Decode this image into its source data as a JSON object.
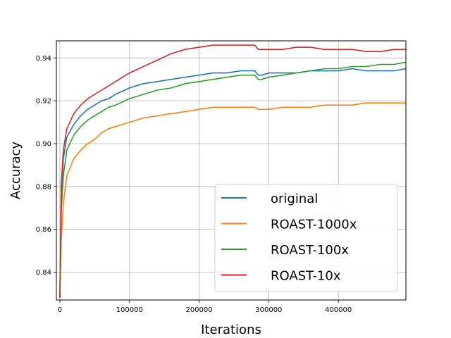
{
  "chart_data": {
    "type": "line",
    "title": "",
    "xlabel": "Iterations",
    "ylabel": "Accuracy",
    "xlim": [
      -5000,
      497000
    ],
    "ylim": [
      0.827,
      0.948
    ],
    "xticks": [
      0,
      100000,
      200000,
      300000,
      400000
    ],
    "xtick_labels": [
      "0",
      "100000",
      "200000",
      "300000",
      "400000"
    ],
    "yticks": [
      0.84,
      0.86,
      0.88,
      0.9,
      0.92,
      0.94
    ],
    "ytick_labels": [
      "0.84",
      "0.86",
      "0.88",
      "0.90",
      "0.92",
      "0.94"
    ],
    "grid": true,
    "legend_position": "lower-right",
    "series": [
      {
        "name": "original",
        "color": "#1f77b4",
        "x": [
          0,
          2000,
          5000,
          10000,
          20000,
          30000,
          40000,
          50000,
          60000,
          70000,
          80000,
          100000,
          120000,
          140000,
          160000,
          180000,
          200000,
          220000,
          240000,
          260000,
          280000,
          285000,
          290000,
          300000,
          320000,
          340000,
          360000,
          380000,
          400000,
          420000,
          440000,
          460000,
          480000,
          497000
        ],
        "y": [
          0.828,
          0.875,
          0.893,
          0.903,
          0.909,
          0.913,
          0.916,
          0.918,
          0.92,
          0.921,
          0.923,
          0.926,
          0.928,
          0.929,
          0.93,
          0.931,
          0.932,
          0.933,
          0.933,
          0.934,
          0.934,
          0.932,
          0.932,
          0.933,
          0.933,
          0.933,
          0.934,
          0.934,
          0.934,
          0.935,
          0.934,
          0.934,
          0.934,
          0.935
        ]
      },
      {
        "name": "ROAST-1000x",
        "color": "#ff7f0e",
        "x": [
          0,
          2000,
          5000,
          10000,
          20000,
          30000,
          40000,
          50000,
          60000,
          70000,
          80000,
          100000,
          120000,
          140000,
          160000,
          180000,
          200000,
          220000,
          240000,
          260000,
          280000,
          285000,
          290000,
          300000,
          320000,
          340000,
          360000,
          380000,
          400000,
          420000,
          440000,
          460000,
          480000,
          497000
        ],
        "y": [
          0.828,
          0.855,
          0.872,
          0.885,
          0.893,
          0.897,
          0.9,
          0.902,
          0.905,
          0.907,
          0.908,
          0.91,
          0.912,
          0.913,
          0.914,
          0.915,
          0.916,
          0.917,
          0.917,
          0.917,
          0.917,
          0.916,
          0.916,
          0.916,
          0.917,
          0.917,
          0.917,
          0.918,
          0.918,
          0.918,
          0.919,
          0.919,
          0.919,
          0.919
        ]
      },
      {
        "name": "ROAST-100x",
        "color": "#2ca02c",
        "x": [
          0,
          2000,
          5000,
          10000,
          20000,
          30000,
          40000,
          50000,
          60000,
          70000,
          80000,
          100000,
          120000,
          140000,
          160000,
          180000,
          200000,
          220000,
          240000,
          260000,
          280000,
          285000,
          290000,
          300000,
          320000,
          340000,
          360000,
          380000,
          400000,
          420000,
          440000,
          460000,
          480000,
          497000
        ],
        "y": [
          0.828,
          0.868,
          0.885,
          0.897,
          0.904,
          0.908,
          0.911,
          0.913,
          0.915,
          0.917,
          0.918,
          0.921,
          0.923,
          0.925,
          0.926,
          0.928,
          0.929,
          0.93,
          0.931,
          0.932,
          0.932,
          0.93,
          0.93,
          0.931,
          0.932,
          0.933,
          0.934,
          0.935,
          0.935,
          0.936,
          0.936,
          0.937,
          0.937,
          0.938
        ]
      },
      {
        "name": "ROAST-10x",
        "color": "#d62728",
        "x": [
          0,
          2000,
          5000,
          10000,
          20000,
          30000,
          40000,
          50000,
          60000,
          70000,
          80000,
          100000,
          120000,
          140000,
          160000,
          180000,
          200000,
          220000,
          240000,
          260000,
          280000,
          285000,
          290000,
          300000,
          320000,
          340000,
          360000,
          380000,
          400000,
          420000,
          440000,
          460000,
          480000,
          497000
        ],
        "y": [
          0.828,
          0.88,
          0.897,
          0.907,
          0.914,
          0.918,
          0.921,
          0.923,
          0.925,
          0.927,
          0.929,
          0.933,
          0.936,
          0.939,
          0.942,
          0.944,
          0.945,
          0.946,
          0.946,
          0.946,
          0.946,
          0.944,
          0.944,
          0.944,
          0.944,
          0.945,
          0.945,
          0.944,
          0.944,
          0.944,
          0.943,
          0.943,
          0.944,
          0.944
        ]
      }
    ]
  }
}
